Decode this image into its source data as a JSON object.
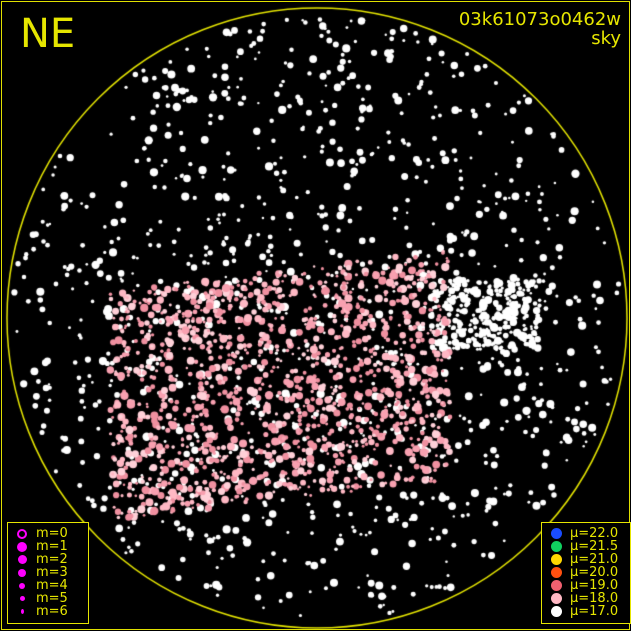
{
  "corner_label": "NE",
  "title": {
    "id": "03k61073o0462w",
    "subtitle": "sky"
  },
  "colors": {
    "frame": "#e6e600",
    "background": "#000000",
    "magnitude_symbol": "#ff00ff"
  },
  "magnitude_legend": [
    {
      "label": "m=0",
      "size": 0,
      "hollow": true
    },
    {
      "label": "m=1",
      "size": 1
    },
    {
      "label": "m=2",
      "size": 2
    },
    {
      "label": "m=3",
      "size": 3
    },
    {
      "label": "m=4",
      "size": 4
    },
    {
      "label": "m=5",
      "size": 5
    },
    {
      "label": "m=6",
      "size": 6
    }
  ],
  "brightness_legend": [
    {
      "label": "μ=22.0",
      "color": "#1a4cff"
    },
    {
      "label": "μ=21.5",
      "color": "#10d060"
    },
    {
      "label": "μ=21.0",
      "color": "#ffd800"
    },
    {
      "label": "μ=20.0",
      "color": "#ff5010"
    },
    {
      "label": "μ=19.0",
      "color": "#f06070"
    },
    {
      "label": "μ=18.0",
      "color": "#ffb8c4"
    },
    {
      "label": "μ=17.0",
      "color": "#ffffff"
    }
  ]
}
